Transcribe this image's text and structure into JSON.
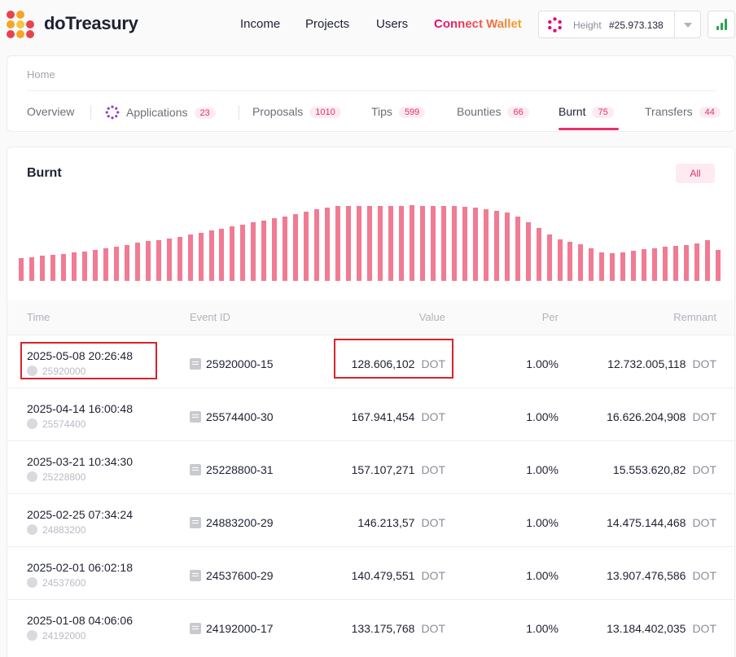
{
  "header": {
    "brand": "doTreasury",
    "nav": [
      "Income",
      "Projects",
      "Users",
      "Connect Wallet"
    ],
    "height_label": "Height",
    "height_value": "#25.973.138"
  },
  "breadcrumb": "Home",
  "tabs": [
    {
      "label": "Overview",
      "count": ""
    },
    {
      "label": "Applications",
      "count": "23"
    },
    {
      "label": "Proposals",
      "count": "1010"
    },
    {
      "label": "Tips",
      "count": "599"
    },
    {
      "label": "Bounties",
      "count": "66"
    },
    {
      "label": "Burnt",
      "count": "75"
    },
    {
      "label": "Transfers",
      "count": "44"
    }
  ],
  "section": {
    "title": "Burnt",
    "filter": "All"
  },
  "chart_data": {
    "type": "bar",
    "values": [
      28,
      29,
      31,
      32,
      33,
      35,
      36,
      38,
      40,
      42,
      44,
      47,
      49,
      50,
      52,
      54,
      57,
      59,
      62,
      64,
      67,
      69,
      72,
      74,
      77,
      79,
      82,
      85,
      88,
      90,
      92,
      92,
      92,
      92,
      92,
      92,
      92,
      93,
      92,
      92,
      92,
      92,
      91,
      90,
      88,
      86,
      84,
      79,
      72,
      65,
      57,
      51,
      48,
      45,
      40,
      35,
      34,
      35,
      37,
      39,
      40,
      42,
      43,
      44,
      46,
      50,
      38
    ],
    "ylim": [
      0,
      100
    ]
  },
  "table": {
    "columns": [
      "Time",
      "Event ID",
      "Value",
      "Per",
      "Remnant"
    ],
    "unit": "DOT",
    "rows": [
      {
        "time": "2025-05-08 20:26:48",
        "block": "25920000",
        "event_id": "25920000-15",
        "value": "128.606,102",
        "per": "1.00%",
        "remnant": "12.732.005,118"
      },
      {
        "time": "2025-04-14 16:00:48",
        "block": "25574400",
        "event_id": "25574400-30",
        "value": "167.941,454",
        "per": "1.00%",
        "remnant": "16.626.204,908"
      },
      {
        "time": "2025-03-21 10:34:30",
        "block": "25228800",
        "event_id": "25228800-31",
        "value": "157.107,271",
        "per": "1.00%",
        "remnant": "15.553.620,82"
      },
      {
        "time": "2025-02-25 07:34:24",
        "block": "24883200",
        "event_id": "24883200-29",
        "value": "146.213,57",
        "per": "1.00%",
        "remnant": "14.475.144,468"
      },
      {
        "time": "2025-02-01 06:02:18",
        "block": "24537600",
        "event_id": "24537600-29",
        "value": "140.479,551",
        "per": "1.00%",
        "remnant": "13.907.476,586"
      },
      {
        "time": "2025-01-08 04:06:06",
        "block": "24192000",
        "event_id": "24192000-17",
        "value": "133.175,768",
        "per": "1.00%",
        "remnant": "13.184.402,035"
      }
    ]
  },
  "colors": {
    "accent": "#e3306f",
    "bar": "#f17b93",
    "highlight": "#d8232a"
  }
}
